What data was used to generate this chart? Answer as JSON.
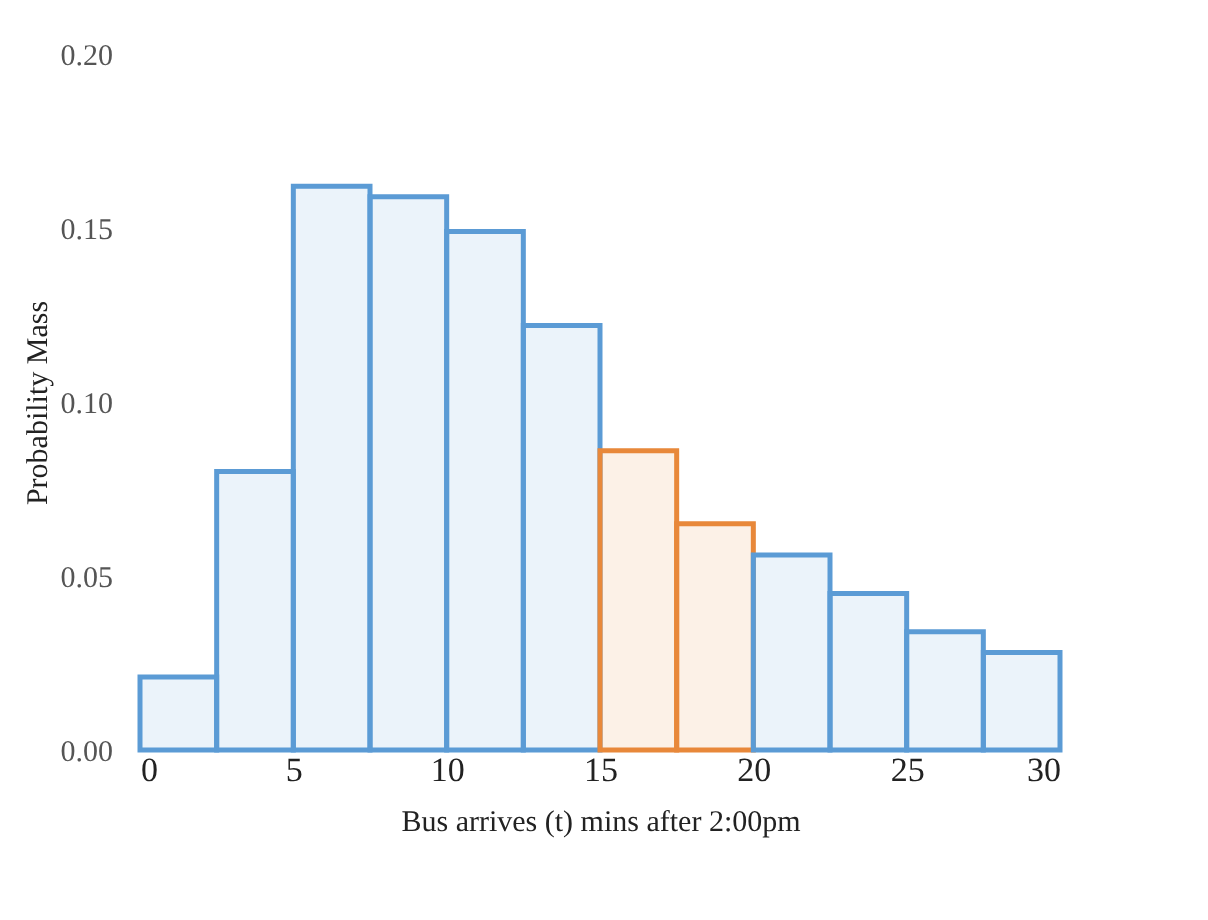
{
  "chart_data": {
    "type": "histogram",
    "xlabel": "Bus arrives (t) mins after 2:00pm",
    "ylabel": "Probability Mass",
    "bins": [
      0,
      2.5,
      5,
      7.5,
      10,
      12.5,
      15,
      17.5,
      20,
      22.5,
      25,
      27.5,
      30
    ],
    "values": [
      0.021,
      0.08,
      0.162,
      0.159,
      0.149,
      0.122,
      0.086,
      0.065,
      0.056,
      0.045,
      0.034,
      0.028
    ],
    "colors": [
      "#5b9bd5",
      "#5b9bd5",
      "#5b9bd5",
      "#5b9bd5",
      "#5b9bd5",
      "#5b9bd5",
      "#e8883a",
      "#e8883a",
      "#5b9bd5",
      "#5b9bd5",
      "#5b9bd5",
      "#5b9bd5"
    ],
    "xlim": [
      0,
      30
    ],
    "xticks": [
      0,
      5,
      10,
      15,
      20,
      25,
      30
    ],
    "ylim": [
      0,
      0.2
    ],
    "yticks": [
      {
        "value": 0,
        "label": "0.00"
      },
      {
        "value": 0.05,
        "label": "0.05"
      },
      {
        "value": 0.1,
        "label": "0.10"
      },
      {
        "value": 0.15,
        "label": "0.15"
      },
      {
        "value": 0.2,
        "label": "0.20"
      }
    ],
    "grid": false
  }
}
